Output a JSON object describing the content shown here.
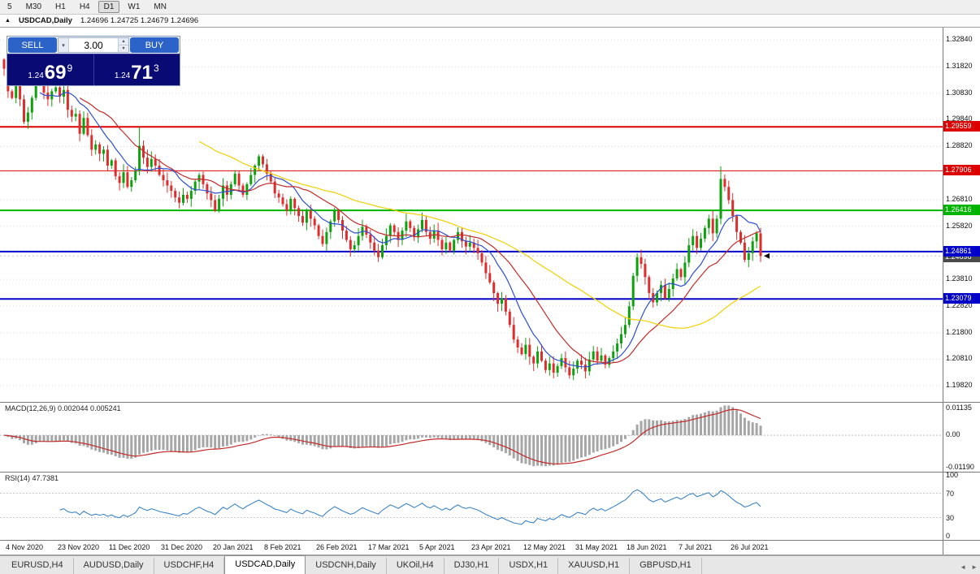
{
  "toolbar": {
    "timeframes": [
      "5",
      "M30",
      "H1",
      "H4",
      "D1",
      "W1",
      "MN"
    ],
    "active": "D1"
  },
  "title_bar": {
    "symbol": "USDCAD,Daily",
    "ohlc": "1.24696 1.24725 1.24679 1.24696"
  },
  "trade_panel": {
    "sell_label": "SELL",
    "buy_label": "BUY",
    "lot": "3.00",
    "sell_price": {
      "prefix": "1.24",
      "pips": "69",
      "frac": "9"
    },
    "buy_price": {
      "prefix": "1.24",
      "pips": "71",
      "frac": "3"
    }
  },
  "chart_data": {
    "type": "candlestick",
    "symbol": "USDCAD",
    "timeframe": "Daily",
    "price_range": {
      "max": 1.333,
      "min": 1.192
    },
    "up_color": "#0ea10e",
    "down_color": "#dd2e2e",
    "y_axis_labels": [
      1.3284,
      1.3182,
      1.3083,
      1.2984,
      1.2882,
      1.2783,
      1.2681,
      1.2582,
      1.2483,
      1.2381,
      1.2282,
      1.218,
      1.2081,
      1.1982
    ],
    "x_axis_labels": [
      {
        "label": "4 Nov 2020",
        "bar": 2
      },
      {
        "label": "23 Nov 2020",
        "bar": 15
      },
      {
        "label": "11 Dec 2020",
        "bar": 28
      },
      {
        "label": "31 Dec 2020",
        "bar": 41
      },
      {
        "label": "20 Jan 2021",
        "bar": 54
      },
      {
        "label": "8 Feb 2021",
        "bar": 67
      },
      {
        "label": "26 Feb 2021",
        "bar": 80
      },
      {
        "label": "17 Mar 2021",
        "bar": 93
      },
      {
        "label": "5 Apr 2021",
        "bar": 106
      },
      {
        "label": "23 Apr 2021",
        "bar": 119
      },
      {
        "label": "12 May 2021",
        "bar": 132
      },
      {
        "label": "31 May 2021",
        "bar": 145
      },
      {
        "label": "18 Jun 2021",
        "bar": 158
      },
      {
        "label": "7 Jul 2021",
        "bar": 171
      },
      {
        "label": "26 Jul 2021",
        "bar": 184
      }
    ],
    "hlines": [
      {
        "price": 1.29559,
        "color": "#dd0000",
        "width": 2
      },
      {
        "price": 1.27906,
        "color": "#dd0000",
        "width": 1
      },
      {
        "price": 1.26416,
        "color": "#00b400",
        "width": 2
      },
      {
        "price": 1.24861,
        "color": "#0000c8",
        "width": 2
      },
      {
        "price": 1.23079,
        "color": "#0000c8",
        "width": 2
      }
    ],
    "current_price": 1.24696,
    "first_open": 1.321,
    "closes": [
      1.3175,
      1.309,
      1.3065,
      1.3145,
      1.306,
      1.2975,
      1.301,
      1.3065,
      1.3125,
      1.314,
      1.3085,
      1.306,
      1.309,
      1.3105,
      1.307,
      1.3095,
      1.302,
      1.2995,
      1.3005,
      1.293,
      1.299,
      1.2925,
      1.287,
      1.289,
      1.2855,
      1.287,
      1.281,
      1.283,
      1.277,
      1.2745,
      1.2785,
      1.273,
      1.2755,
      1.279,
      1.2885,
      1.284,
      1.2805,
      1.2835,
      1.281,
      1.2775,
      1.2755,
      1.2735,
      1.2715,
      1.269,
      1.267,
      1.27,
      1.2685,
      1.2715,
      1.275,
      1.2775,
      1.274,
      1.2705,
      1.268,
      1.264,
      1.2685,
      1.2735,
      1.27,
      1.274,
      1.278,
      1.2735,
      1.27,
      1.274,
      1.2775,
      1.281,
      1.2845,
      1.2815,
      1.278,
      1.275,
      1.2705,
      1.269,
      1.2665,
      1.264,
      1.2685,
      1.265,
      1.262,
      1.2595,
      1.264,
      1.261,
      1.2585,
      1.2545,
      1.2515,
      1.256,
      1.26,
      1.264,
      1.2605,
      1.2565,
      1.253,
      1.2495,
      1.251,
      1.2545,
      1.258,
      1.255,
      1.252,
      1.249,
      1.2465,
      1.251,
      1.2545,
      1.2585,
      1.256,
      1.253,
      1.2565,
      1.26,
      1.2575,
      1.254,
      1.257,
      1.2605,
      1.256,
      1.2535,
      1.2565,
      1.253,
      1.2495,
      1.252,
      1.249,
      1.253,
      1.256,
      1.2525,
      1.2505,
      1.252,
      1.25,
      1.248,
      1.2445,
      1.2405,
      1.237,
      1.233,
      1.229,
      1.231,
      1.226,
      1.221,
      1.2155,
      1.2125,
      1.21,
      1.2135,
      1.209,
      1.2065,
      1.211,
      1.2075,
      1.204,
      1.2065,
      1.203,
      1.2055,
      1.2085,
      1.205,
      1.202,
      1.2045,
      1.2075,
      1.206,
      1.2035,
      1.208,
      1.211,
      1.2075,
      1.2095,
      1.206,
      1.2085,
      1.211,
      1.214,
      1.2175,
      1.221,
      1.228,
      1.2395,
      1.2465,
      1.244,
      1.239,
      1.233,
      1.2295,
      1.233,
      1.236,
      1.231,
      1.2345,
      1.2385,
      1.242,
      1.239,
      1.2445,
      1.251,
      1.2545,
      1.25,
      1.2535,
      1.2575,
      1.261,
      1.2555,
      1.261,
      1.276,
      1.273,
      1.268,
      1.262,
      1.256,
      1.252,
      1.2455,
      1.248,
      1.2525,
      1.2555,
      1.24696
    ],
    "wick_overrides": {
      "34": {
        "h": 1.2955
      },
      "159": {
        "h": 1.248
      },
      "180": {
        "h": 1.2807
      },
      "190": {
        "l": 1.2447
      }
    },
    "moving_averages": [
      {
        "period": 10,
        "color": "#2e4fd0"
      },
      {
        "period": 20,
        "color": "#c32b2b"
      },
      {
        "period": 50,
        "color": "#f0d000"
      }
    ],
    "macd": {
      "header": "MACD(12,26,9) 0.002044 0.005241",
      "fast": 12,
      "slow": 26,
      "signal": 9,
      "axis_max": 0.01135,
      "axis_min": -0.0119,
      "axis_labels": [
        "0.01135",
        "0.00",
        "-0.01190"
      ],
      "histogram_color": "#a6a6a6",
      "signal_color": "#c32b2b"
    },
    "rsi": {
      "header": "RSI(14) 47.7381",
      "period": 14,
      "levels": [
        70,
        30
      ],
      "axis_labels": [
        "100",
        "70",
        "30",
        "0"
      ],
      "color": "#3d85c6"
    }
  },
  "tabs": {
    "items": [
      "EURUSD,H4",
      "AUDUSD,Daily",
      "USDCHF,H4",
      "USDCAD,Daily",
      "USDCNH,Daily",
      "UKOil,H4",
      "DJ30,H1",
      "USDX,H1",
      "XAUUSD,H1",
      "GBPUSD,H1"
    ],
    "active_index": 3
  }
}
